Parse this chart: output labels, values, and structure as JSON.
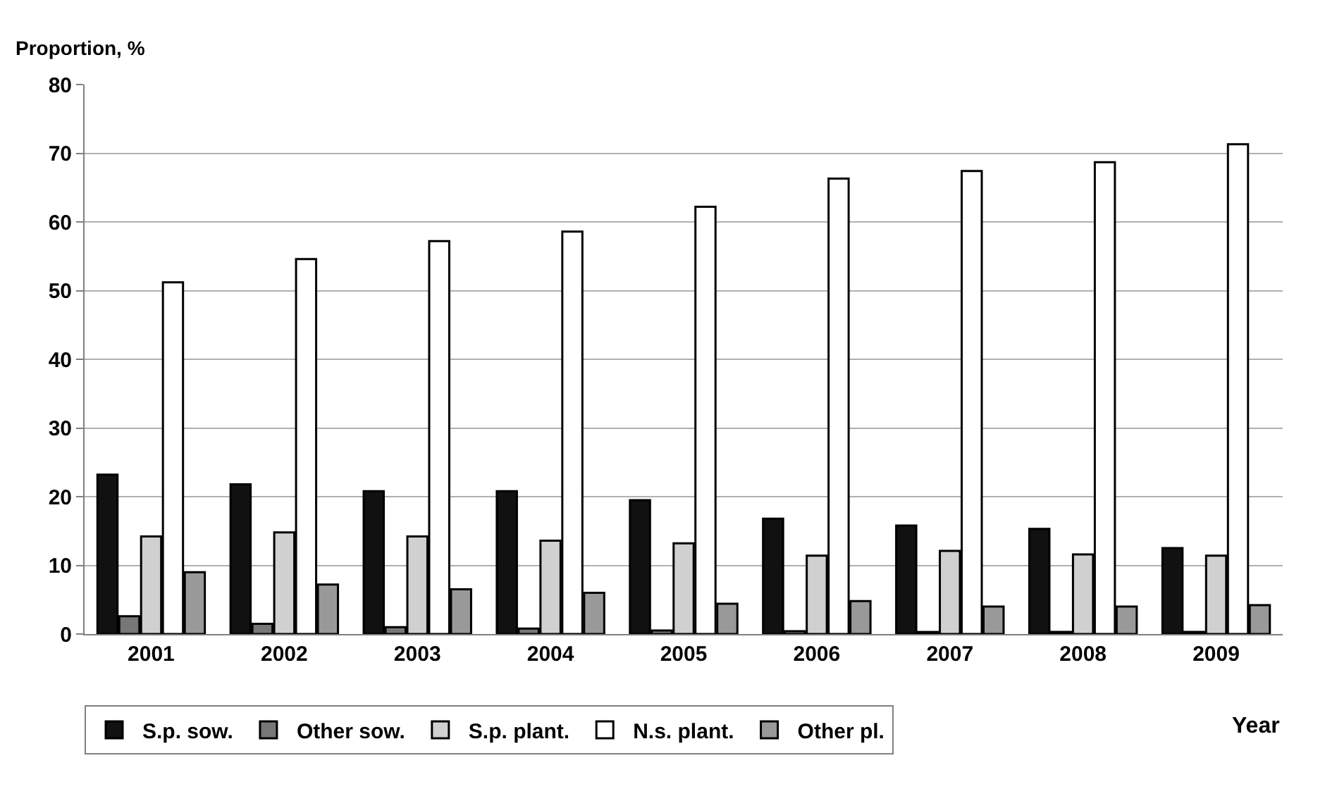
{
  "chart_data": {
    "type": "bar",
    "ylabel": "Proportion, %",
    "xlabel": "Year",
    "categories": [
      "2001",
      "2002",
      "2003",
      "2004",
      "2005",
      "2006",
      "2007",
      "2008",
      "2009"
    ],
    "series": [
      {
        "name": "S.p. sow.",
        "color": "#111111",
        "values": [
          23.2,
          21.8,
          20.8,
          20.8,
          19.5,
          16.8,
          15.8,
          15.3,
          12.5
        ]
      },
      {
        "name": "Other sow.",
        "color": "#777777",
        "values": [
          2.6,
          1.5,
          1.0,
          0.8,
          0.5,
          0.4,
          0.3,
          0.3,
          0.3
        ]
      },
      {
        "name": "S.p. plant.",
        "color": "#d0d0d0",
        "values": [
          14.2,
          14.8,
          14.2,
          13.6,
          13.2,
          11.4,
          12.1,
          11.6,
          11.4
        ]
      },
      {
        "name": "N.s. plant.",
        "color": "#ffffff",
        "values": [
          51.2,
          54.6,
          57.2,
          58.6,
          62.2,
          66.3,
          67.4,
          68.7,
          71.3
        ]
      },
      {
        "name": "Other pl.",
        "color": "#999999",
        "values": [
          9.0,
          7.2,
          6.5,
          6.0,
          4.4,
          4.8,
          4.0,
          4.0,
          4.2
        ]
      }
    ],
    "ylim": [
      0,
      80
    ],
    "yticks": [
      0,
      10,
      20,
      30,
      40,
      50,
      60,
      70,
      80
    ],
    "grid": "y",
    "legend": "bottom"
  }
}
